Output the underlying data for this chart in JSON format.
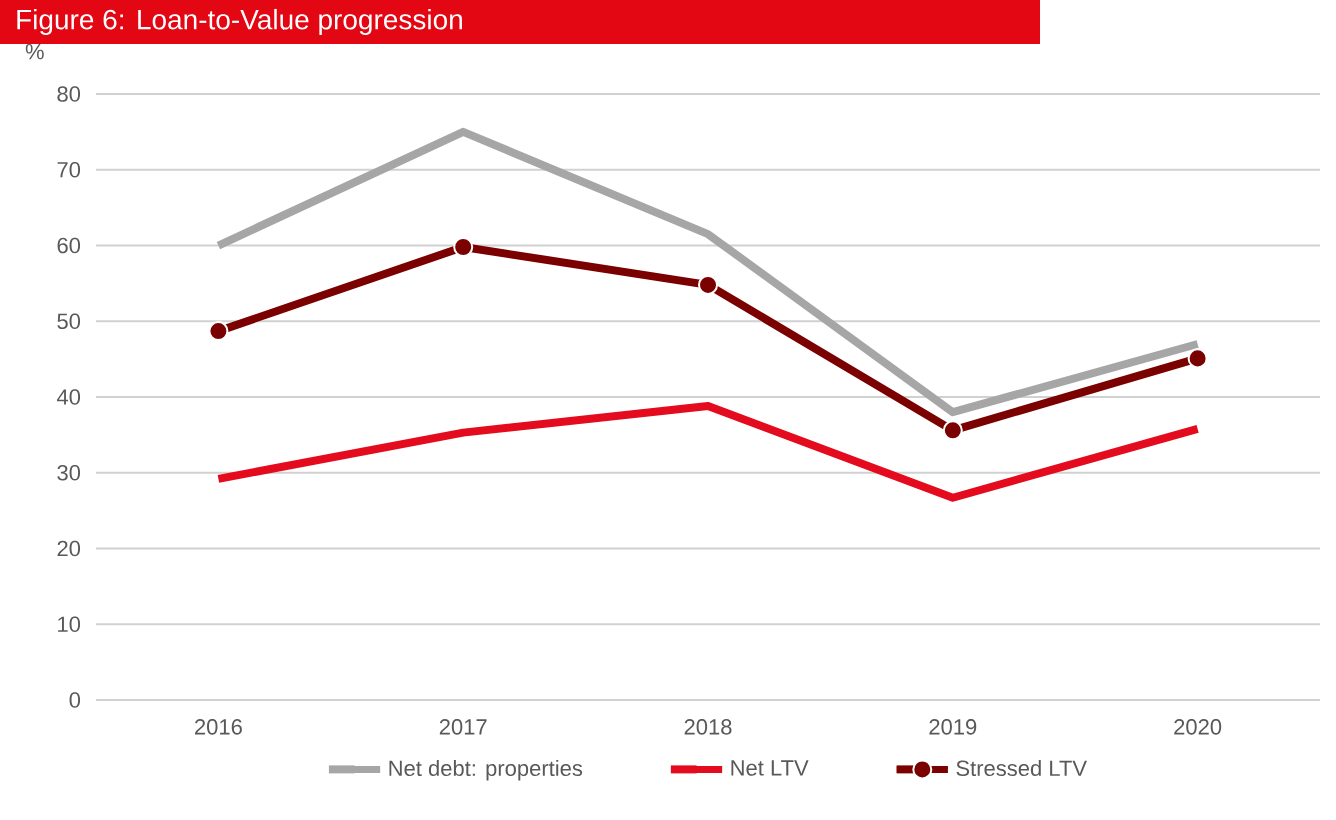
{
  "chart_data": {
    "type": "line",
    "title": "Figure 6: Loan-to-Value progression",
    "ylabel": "%",
    "categories": [
      "2016",
      "2017",
      "2018",
      "2019",
      "2020"
    ],
    "series": [
      {
        "name": "Net debt: properties",
        "color": "#a6a6a6",
        "values": [
          60,
          75,
          61.5,
          38,
          47
        ]
      },
      {
        "name": "Net LTV",
        "color": "#e30b1d",
        "values": [
          29.2,
          35.3,
          38.8,
          26.7,
          35.8
        ]
      },
      {
        "name": "Stressed LTV",
        "color": "#7b0000",
        "values": [
          48.7,
          59.8,
          54.8,
          35.6,
          45.1
        ],
        "marker": "circle"
      }
    ],
    "ylim": [
      0,
      80
    ],
    "yticks": [
      0,
      10,
      20,
      30,
      40,
      50,
      60,
      70,
      80
    ],
    "grid": "y",
    "legend": "bottom"
  }
}
